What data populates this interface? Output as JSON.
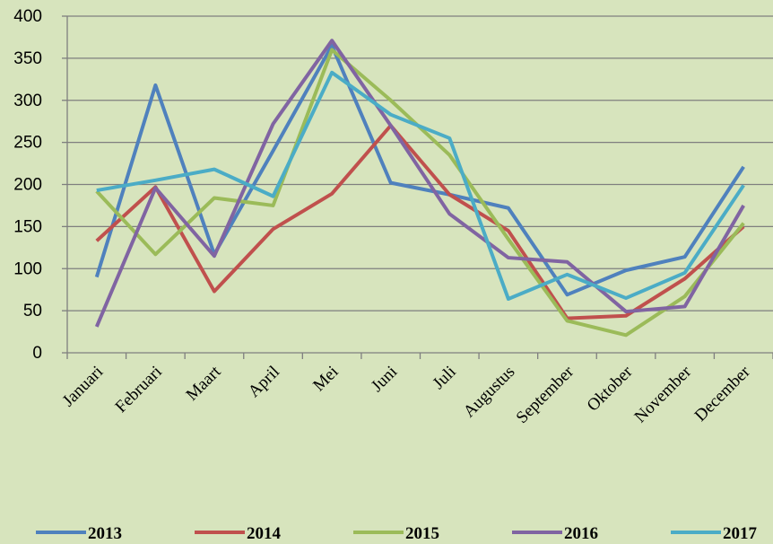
{
  "chart_data": {
    "type": "line",
    "categories": [
      "Januari",
      "Februari",
      "Maart",
      "April",
      "Mei",
      "Juni",
      "Juli",
      "Augustus",
      "September",
      "Oktober",
      "November",
      "December"
    ],
    "series": [
      {
        "name": "2013",
        "color": "#4f81bd",
        "values": [
          90,
          318,
          117,
          240,
          365,
          202,
          188,
          172,
          69,
          98,
          114,
          221
        ]
      },
      {
        "name": "2014",
        "color": "#c0504d",
        "values": [
          133,
          197,
          73,
          147,
          189,
          270,
          188,
          145,
          41,
          44,
          88,
          150
        ]
      },
      {
        "name": "2015",
        "color": "#9bbb59",
        "values": [
          192,
          117,
          184,
          175,
          360,
          300,
          235,
          135,
          38,
          21,
          67,
          154
        ]
      },
      {
        "name": "2016",
        "color": "#8064a2",
        "values": [
          31,
          196,
          115,
          272,
          371,
          270,
          165,
          113,
          108,
          49,
          55,
          175
        ]
      },
      {
        "name": "2017",
        "color": "#4bacc6",
        "values": [
          193,
          205,
          218,
          186,
          333,
          283,
          255,
          64,
          93,
          65,
          95,
          199
        ]
      }
    ],
    "ylim": [
      0,
      400
    ],
    "yticks": [
      0,
      50,
      100,
      150,
      200,
      250,
      300,
      350,
      400
    ],
    "grid": true,
    "legend": "bottom"
  }
}
